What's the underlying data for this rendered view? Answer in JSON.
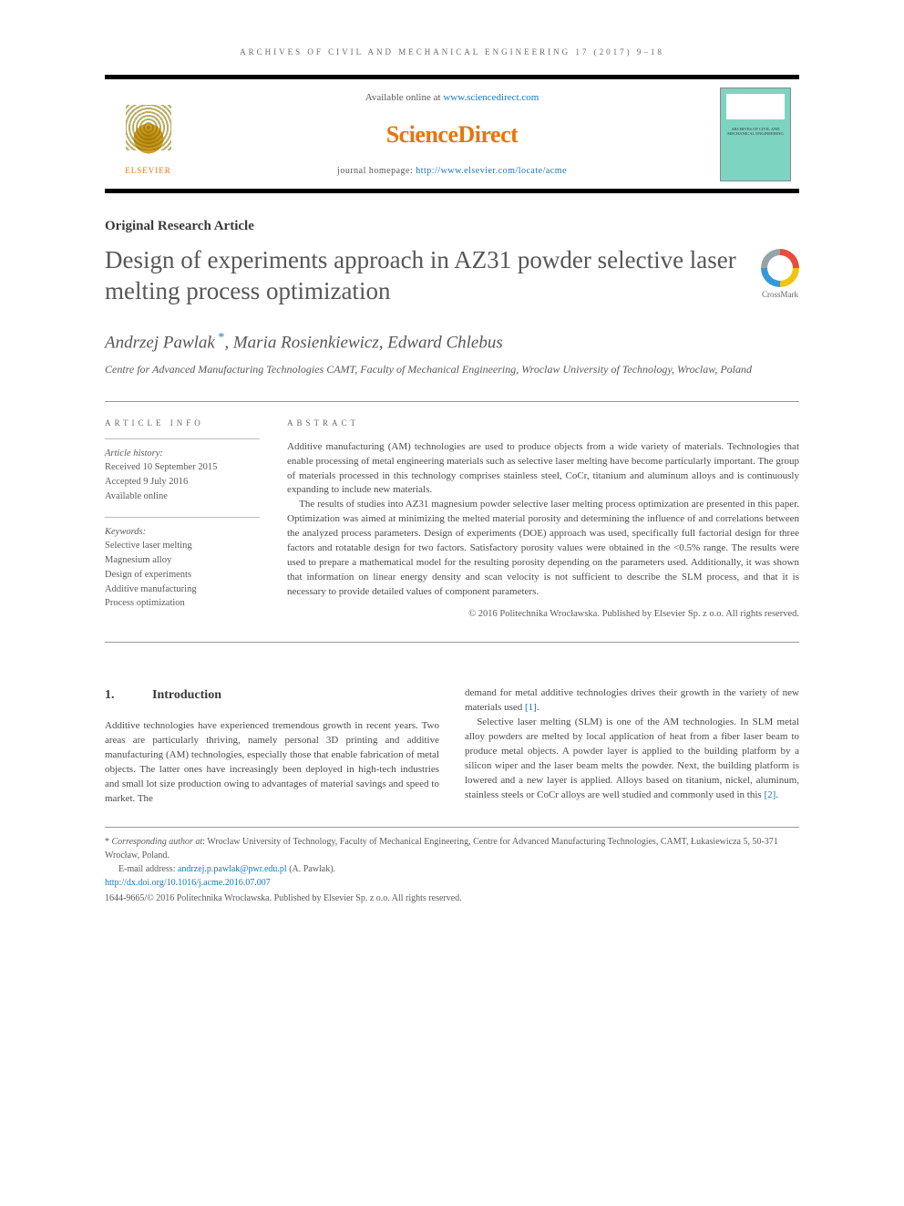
{
  "running_head": "ARCHIVES OF CIVIL AND MECHANICAL ENGINEERING 17 (2017) 9–18",
  "header": {
    "available_prefix": "Available online at ",
    "available_link": "www.sciencedirect.com",
    "sd_logo": "ScienceDirect",
    "homepage_prefix": "journal homepage: ",
    "homepage_link": "http://www.elsevier.com/locate/acme",
    "elsevier": "ELSEVIER",
    "cover_title": "ARCHIVES\nOF CIVIL AND MECHANICAL\nENGINEERING"
  },
  "article_type": "Original Research Article",
  "title": "Design of experiments approach in AZ31 powder selective laser melting process optimization",
  "crossmark": "CrossMark",
  "authors": "Andrzej Pawlak *, Maria Rosienkiewicz, Edward Chlebus",
  "author_name_1": "Andrzej Pawlak",
  "author_name_2": "Maria Rosienkiewicz",
  "author_name_3": "Edward Chlebus",
  "affiliation": "Centre for Advanced Manufacturing Technologies CAMT, Faculty of Mechanical Engineering, Wroclaw University of Technology, Wroclaw, Poland",
  "info": {
    "heading": "ARTICLE INFO",
    "history_label": "Article history:",
    "received": "Received 10 September 2015",
    "accepted": "Accepted 9 July 2016",
    "available": "Available online",
    "keywords_label": "Keywords:",
    "keywords": [
      "Selective laser melting",
      "Magnesium alloy",
      "Design of experiments",
      "Additive manufacturing",
      "Process optimization"
    ]
  },
  "abstract": {
    "heading": "ABSTRACT",
    "p1": "Additive manufacturing (AM) technologies are used to produce objects from a wide variety of materials. Technologies that enable processing of metal engineering materials such as selective laser melting have become particularly important. The group of materials processed in this technology comprises stainless steel, CoCr, titanium and aluminum alloys and is continuously expanding to include new materials.",
    "p2": "The results of studies into AZ31 magnesium powder selective laser melting process optimization are presented in this paper. Optimization was aimed at minimizing the melted material porosity and determining the influence of and correlations between the analyzed process parameters. Design of experiments (DOE) approach was used, specifically full factorial design for three factors and rotatable design for two factors. Satisfactory porosity values were obtained in the <0.5% range. The results were used to prepare a mathematical model for the resulting porosity depending on the parameters used. Additionally, it was shown that information on linear energy density and scan velocity is not sufficient to describe the SLM process, and that it is necessary to provide detailed values of component parameters.",
    "copyright": "© 2016 Politechnika Wrocławska. Published by Elsevier Sp. z o.o. All rights reserved."
  },
  "body": {
    "section_num": "1.",
    "section_title": "Introduction",
    "col1_p1": "Additive technologies have experienced tremendous growth in recent years. Two areas are particularly thriving, namely personal 3D printing and additive manufacturing (AM) technologies, especially those that enable fabrication of metal objects. The latter ones have increasingly been deployed in high-tech industries and small lot size production owing to advantages of material savings and speed to market. The",
    "col2_p1_a": "demand for metal additive technologies drives their growth in the variety of new materials used ",
    "col2_ref1": "[1]",
    "col2_p1_b": ".",
    "col2_p2_a": "Selective laser melting (SLM) is one of the AM technologies. In SLM metal alloy powders are melted by local application of heat from a fiber laser beam to produce metal objects. A powder layer is applied to the building platform by a silicon wiper and the laser beam melts the powder. Next, the building platform is lowered and a new layer is applied. Alloys based on titanium, nickel, aluminum, stainless steels or CoCr alloys are well studied and commonly used in this ",
    "col2_ref2": "[2]",
    "col2_p2_b": "."
  },
  "footnotes": {
    "corresponding_label": "Corresponding author at",
    "corresponding_text": ": Wroclaw University of Technology, Faculty of Mechanical Engineering, Centre for Advanced Manufacturing Technologies, CAMT, Łukasiewicza 5, 50-371 Wrocław, Poland.",
    "email_label": "E-mail address: ",
    "email": "andrzej.p.pawlak@pwr.edu.pl",
    "email_suffix": " (A. Pawlak).",
    "doi": "http://dx.doi.org/10.1016/j.acme.2016.07.007",
    "issn_copyright": "1644-9665/© 2016 Politechnika Wrocławska. Published by Elsevier Sp. z o.o. All rights reserved."
  },
  "colors": {
    "link": "#1878c0",
    "orange": "#e8750a",
    "text": "#4a4a4a",
    "heading": "#3a3a3a",
    "cover_bg": "#7dd4c0"
  }
}
